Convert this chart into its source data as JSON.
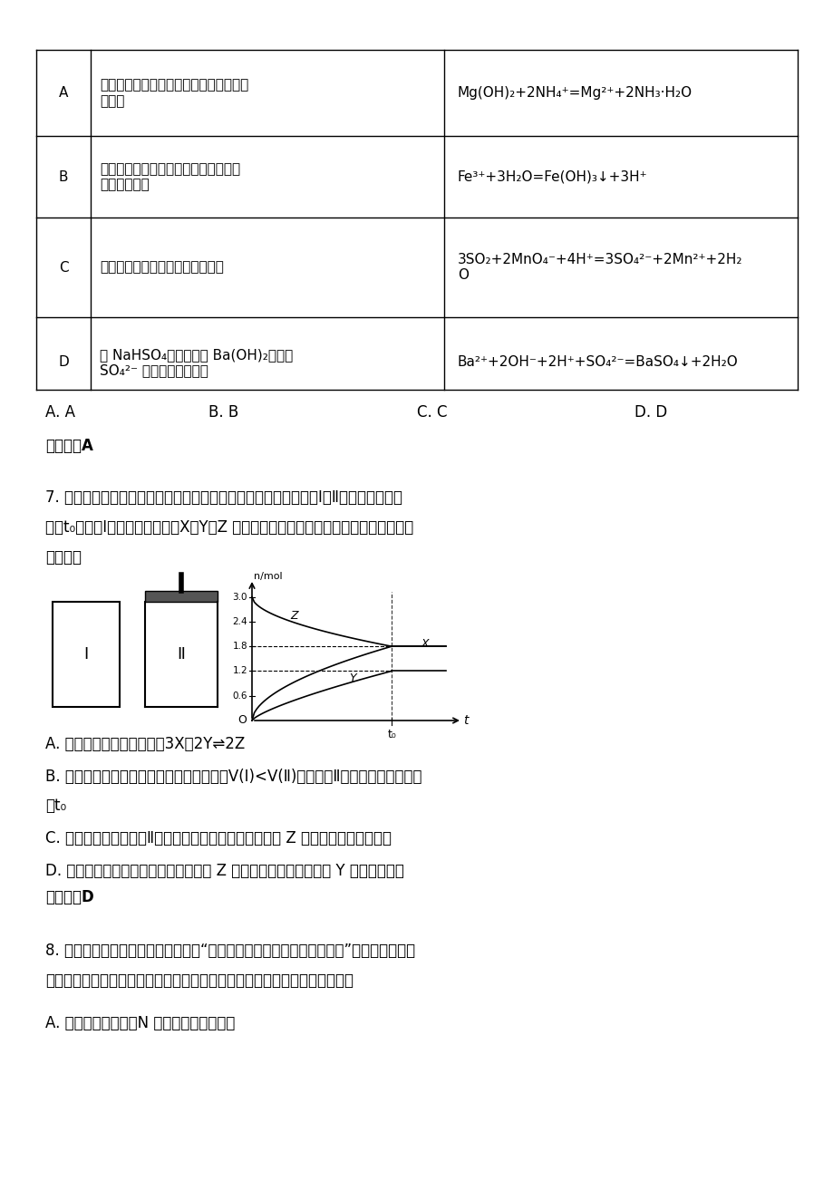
{
  "bg_color": "#ffffff",
  "table_rows": [
    {
      "label": "A",
      "left_text": "向氢氧化镁悬浊液中滴加氯化鍗溶液，沉\n淠溶解",
      "right_text": "Mg(OH)₂+2NH₄⁺=Mg²⁺+2NH₃·H₂O"
    },
    {
      "label": "B",
      "left_text": "向沸水中滴加饱和氯化铁溶液得到透明\n的红褐色液体",
      "right_text": "Fe³⁺+3H₂O=Fe(OH)₃↓+3H⁺"
    },
    {
      "label": "C",
      "left_text": "二氧化硫使酸性高锡酸钒溶液褮色",
      "right_text": "3SO₂+2MnO₄⁻+4H⁺=3SO₄²⁻+2Mn²⁺+2H₂\nO"
    },
    {
      "label": "D",
      "left_text": "向 NaHSO₄溶液中滴加 Ba(OH)₂溶液至\nSO₄²⁻ 离子恰好沉淠完全",
      "right_text": "Ba²⁺+2OH⁻+2H⁺+SO₄²⁻=BaSO₄↓+2H₂O"
    }
  ],
  "answer1": "【答案】A",
  "answer2": "【答案】D",
  "q7_lines": [
    "7. 在一定温度下，将等量的气体分别通入起始体积相同的密闭容器Ⅰ和Ⅱ中，使其发生反",
    "应，t₀时容器Ⅰ中达到化学平衡，X、Y、Z 的物质的量的变化如图所示。则下列有关推断",
    "正确的是"
  ],
  "q7_options": [
    "A. 该反应的化学方程式为：3X＋2Y⇌2Z",
    "B. 若两容器中均达到平衡时，两容器的体积V(Ⅰ)<V(Ⅱ)，则容器Ⅱ达到平衡所需时间小",
    "于t₀",
    "C. 若达平衡后，对容器Ⅱ升高温度时，其体积增大，说明 Z 发生的反应为吸热反应",
    "D. 若两容器中均达到平衡时，两容器中 Z 的物质的量分数相同，则 Y 为固态或液态"
  ],
  "q8_lines": [
    "8. 王安石在《元丰行示德逢》里写道“雷蟠电掣云滤滤，夜半载雨输产皋”，此时空气中的",
    "氮气经过一系列反应最终进入土壤，氮元素被植物所利用。下列说法错误的是",
    "A. 在同周期元素中，N 的未成对电子数最多"
  ]
}
